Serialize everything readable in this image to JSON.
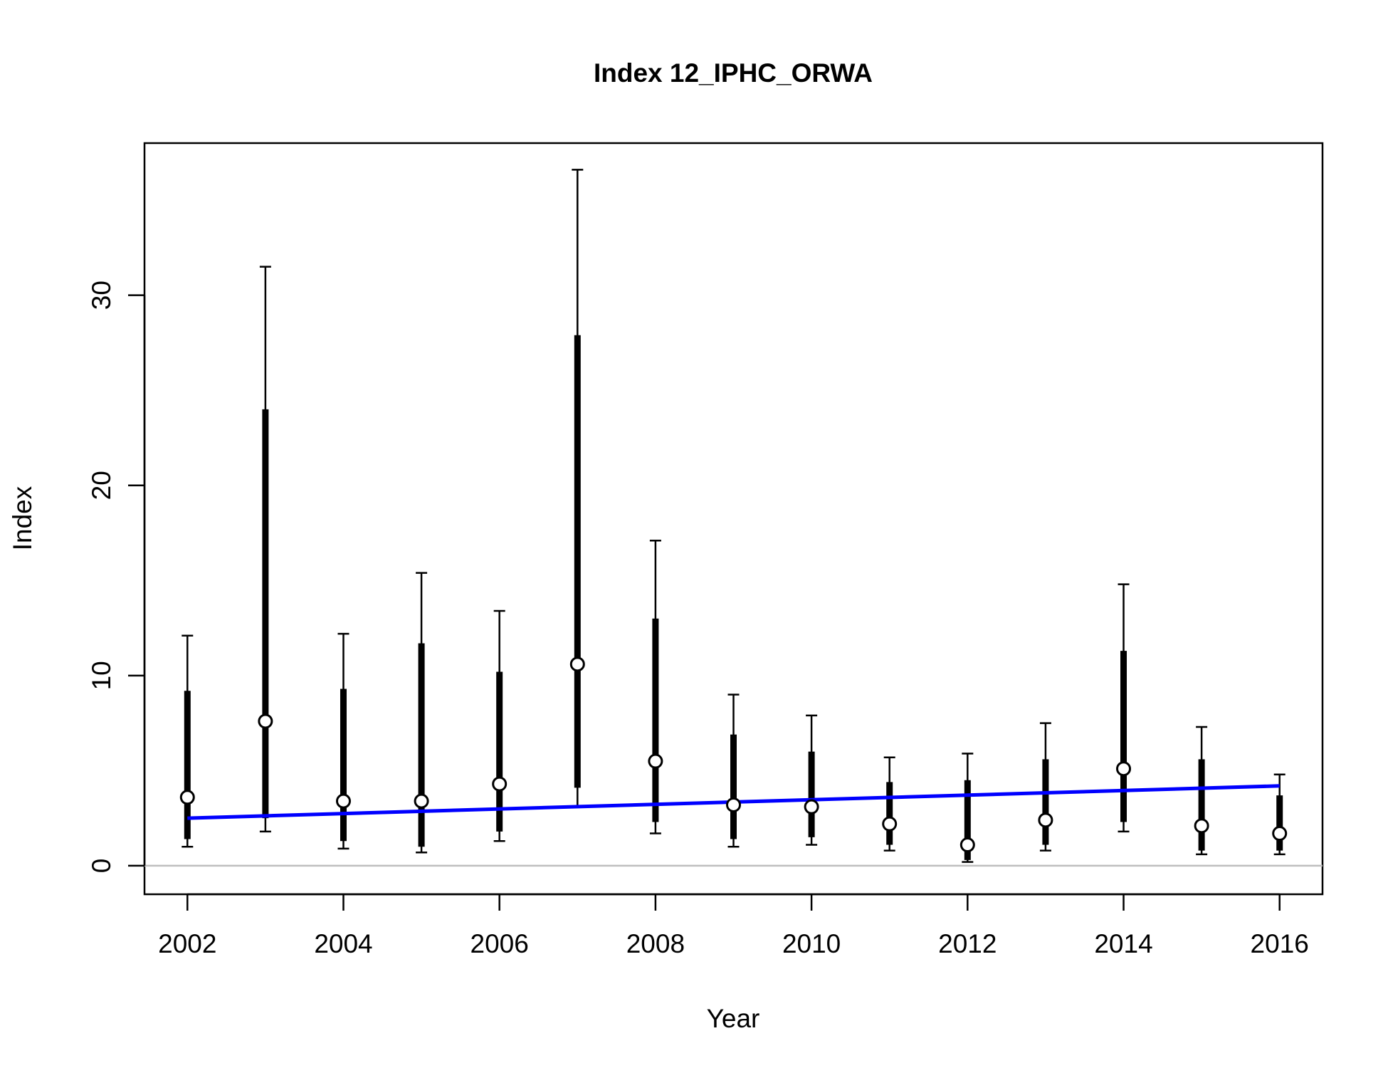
{
  "chart_data": {
    "type": "scatter",
    "title": "Index 12_IPHC_ORWA",
    "xlabel": "Year",
    "ylabel": "Index",
    "xlim": [
      2001.45,
      2016.55
    ],
    "ylim": [
      -1.5,
      38
    ],
    "x_ticks": [
      2002,
      2004,
      2006,
      2008,
      2010,
      2012,
      2014,
      2016
    ],
    "y_ticks": [
      0,
      10,
      20,
      30
    ],
    "grid": false,
    "legend": "none",
    "series": [
      {
        "type": "point-with-intervals",
        "x": [
          2002,
          2003,
          2004,
          2005,
          2006,
          2007,
          2008,
          2009,
          2010,
          2011,
          2012,
          2013,
          2014,
          2015,
          2016
        ],
        "values": [
          3.6,
          7.6,
          3.4,
          3.4,
          4.3,
          10.6,
          5.5,
          3.2,
          3.1,
          2.2,
          1.1,
          2.4,
          5.1,
          2.1,
          1.7
        ],
        "inner_low": [
          1.4,
          2.5,
          1.3,
          1.0,
          1.8,
          4.1,
          2.3,
          1.4,
          1.5,
          1.1,
          0.3,
          1.1,
          2.3,
          0.8,
          0.8
        ],
        "inner_high": [
          9.2,
          24.0,
          9.3,
          11.7,
          10.2,
          27.9,
          13.0,
          6.9,
          6.0,
          4.4,
          4.5,
          5.6,
          11.3,
          5.6,
          3.7
        ],
        "outer_low": [
          1.0,
          1.8,
          0.9,
          0.7,
          1.3,
          3.1,
          1.7,
          1.0,
          1.1,
          0.8,
          0.2,
          0.8,
          1.8,
          0.6,
          0.6
        ],
        "outer_high": [
          12.1,
          31.5,
          12.2,
          15.4,
          13.4,
          36.6,
          17.1,
          9.0,
          7.9,
          5.7,
          5.9,
          7.5,
          14.8,
          7.3,
          4.8
        ]
      },
      {
        "type": "line",
        "x": [
          2002,
          2016
        ],
        "values": [
          2.5,
          4.2
        ]
      }
    ],
    "reference_line_y": 0,
    "colors": {
      "points_fill": "#ffffff",
      "points_stroke": "#000000",
      "intervals": "#000000",
      "fit_line": "#0000ff",
      "reference_line": "#bebebe"
    }
  }
}
